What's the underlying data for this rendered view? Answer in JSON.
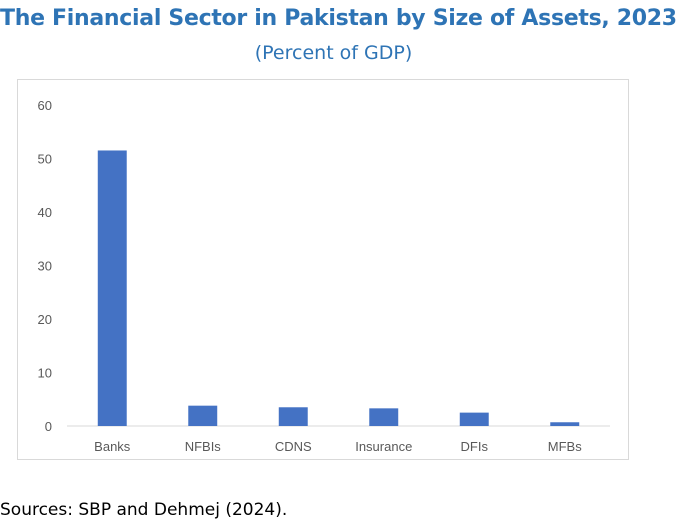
{
  "colors": {
    "title": "#2e74b5",
    "subtitle": "#2e74b5",
    "bar": "#4472c4",
    "axis_text": "#595959",
    "axis_line": "#d9d9d9"
  },
  "source_note": "Sources: SBP and Dehmej (2024).",
  "chart_data": {
    "type": "bar",
    "title": "The Financial Sector in Pakistan by Size of Assets, 2023",
    "subtitle": "(Percent of GDP)",
    "categories": [
      "Banks",
      "NFBIs",
      "CDNS",
      "Insurance",
      "DFIs",
      "MFBs"
    ],
    "values": [
      51.5,
      3.8,
      3.5,
      3.3,
      2.5,
      0.7
    ],
    "ylim": [
      0,
      60
    ],
    "yticks": [
      0,
      10,
      20,
      30,
      40,
      50,
      60
    ],
    "xlabel": "",
    "ylabel": "",
    "grid": false,
    "legend": "none"
  }
}
